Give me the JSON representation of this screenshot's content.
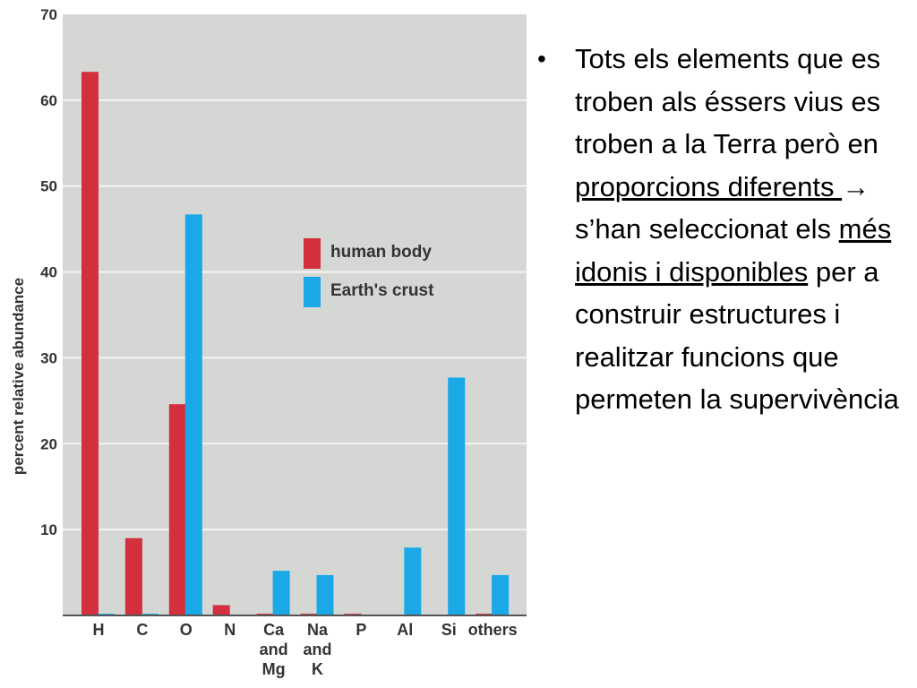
{
  "chart_data": {
    "type": "bar",
    "title": "",
    "xlabel": "",
    "ylabel": "percent relative abundance",
    "ylim": [
      0,
      70
    ],
    "yticks": [
      10,
      20,
      30,
      40,
      50,
      60,
      70
    ],
    "grid": true,
    "legend_position": "center-right",
    "categories": [
      {
        "id": "H",
        "lines": [
          "H"
        ]
      },
      {
        "id": "C",
        "lines": [
          "C"
        ]
      },
      {
        "id": "O",
        "lines": [
          "O"
        ]
      },
      {
        "id": "N",
        "lines": [
          "N"
        ]
      },
      {
        "id": "Ca and Mg",
        "lines": [
          "Ca",
          "and",
          "Mg"
        ]
      },
      {
        "id": "Na and K",
        "lines": [
          "Na",
          "and",
          "K"
        ]
      },
      {
        "id": "P",
        "lines": [
          "P"
        ]
      },
      {
        "id": "Al",
        "lines": [
          "Al"
        ]
      },
      {
        "id": "Si",
        "lines": [
          "Si"
        ]
      },
      {
        "id": "others",
        "lines": [
          "others"
        ]
      }
    ],
    "series": [
      {
        "name": "human body",
        "color": "#d32f3c",
        "values": [
          63.3,
          9.0,
          24.6,
          1.2,
          0.2,
          0.2,
          0.2,
          0.0,
          0.0,
          0.2
        ]
      },
      {
        "name": "Earth's crust",
        "color": "#1aa8e6",
        "values": [
          0.2,
          0.2,
          46.7,
          0.1,
          5.2,
          4.7,
          0.1,
          7.9,
          27.7,
          4.7
        ]
      }
    ]
  },
  "bullet": {
    "p1": "Tots els elements que es troben als éssers vius es troben a la Terra però en ",
    "u1": "proporcions diferents ",
    "arrow": "→",
    "p2": " s’han seleccionat els ",
    "u2": "més idonis i disponibles",
    "p3": " per a construir estructures i realitzar funcions que permeten la supervivència"
  },
  "colors": {
    "plot_background": "#d4d7d4",
    "gridline": "#f4f4f4",
    "axis": "#555555"
  }
}
